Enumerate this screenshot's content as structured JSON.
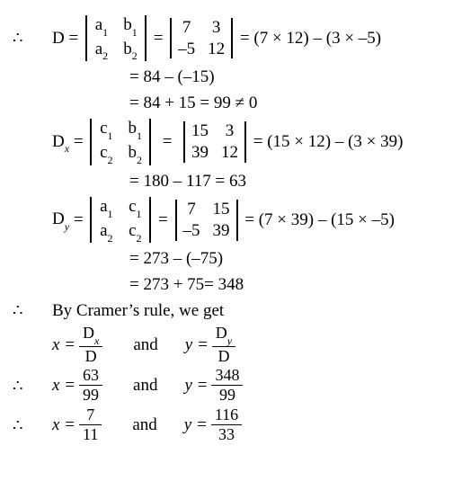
{
  "symbols": {
    "therefore": "∴",
    "neq": "≠",
    "times": "×",
    "minus": "–"
  },
  "D": {
    "name": "D",
    "sym": {
      "a11": "a",
      "s11": "1",
      "a12": "b",
      "s12": "1",
      "a21": "a",
      "s21": "2",
      "a22": "b",
      "s22": "2"
    },
    "num": {
      "n11": "7",
      "n12": "3",
      "n21": "–5",
      "n22": "12"
    },
    "expand": "(7 × 12) – (3 × –5)",
    "step1": "= 84 – (–15)",
    "step2": "= 84 + 15 = 99 ≠ 0"
  },
  "Dx": {
    "name": "D",
    "subscript": "x",
    "sym": {
      "a11": "c",
      "s11": "1",
      "a12": "b",
      "s12": "1",
      "a21": "c",
      "s21": "2",
      "a22": "b",
      "s22": "2"
    },
    "num": {
      "n11": "15",
      "n12": "3",
      "n21": "39",
      "n22": "12"
    },
    "expand": "(15 × 12) – (3 × 39)",
    "step1": "= 180 – 117 = 63"
  },
  "Dy": {
    "name": "D",
    "subscript": "y",
    "sym": {
      "a11": "a",
      "s11": "1",
      "a12": "c",
      "s12": "1",
      "a21": "a",
      "s21": "2",
      "a22": "c",
      "s22": "2"
    },
    "num": {
      "n11": "7",
      "n12": "15",
      "n21": "–5",
      "n22": "39"
    },
    "expand": "(7 × 39) – (15 × –5)",
    "step1": "= 273 – (–75)",
    "step2": "= 273 + 75= 348"
  },
  "cramer": {
    "text": "By Cramer’s rule, we get"
  },
  "results": {
    "line1": {
      "x_lhs": "x =",
      "x_num": "D",
      "x_num_sub": "x",
      "x_den": "D",
      "and": "and",
      "y_lhs": "y =",
      "y_num": "D",
      "y_num_sub": "y",
      "y_den": "D"
    },
    "line2": {
      "x_lhs": "x =",
      "x_num": "63",
      "x_den": "99",
      "and": "and",
      "y_lhs": "y =",
      "y_num": "348",
      "y_den": "99"
    },
    "line3": {
      "x_lhs": "x =",
      "x_num": "7",
      "x_den": "11",
      "and": "and",
      "y_lhs": "y =",
      "y_num": "116",
      "y_den": "33"
    }
  }
}
